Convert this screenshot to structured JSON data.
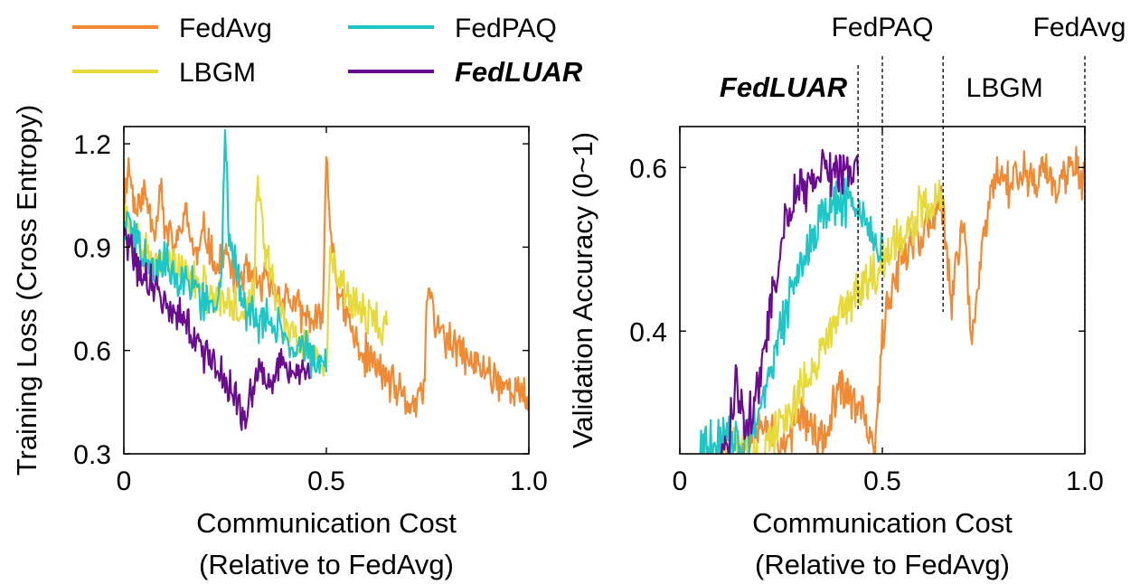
{
  "legend": {
    "entries": [
      {
        "name": "FedAvg",
        "color": "#F08A35",
        "emphasis": false
      },
      {
        "name": "FedPAQ",
        "color": "#1EC6C6",
        "emphasis": false
      },
      {
        "name": "LBGM",
        "color": "#E6DA3C",
        "emphasis": false
      },
      {
        "name": "FedLUAR",
        "color": "#6A0C8F",
        "emphasis": true
      }
    ]
  },
  "chart_data": [
    {
      "type": "line",
      "ylabel": "Training Loss (Cross Entropy)",
      "xlabel_lines": [
        "Communication Cost",
        "(Relative to FedAvg)"
      ],
      "xlim": [
        0,
        1.0
      ],
      "ylim": [
        0.3,
        1.25
      ],
      "xticks": [
        0,
        0.5,
        1.0
      ],
      "xtick_labels": [
        "0",
        "0.5",
        "1.0"
      ],
      "yticks": [
        0.3,
        0.6,
        0.9,
        1.2
      ],
      "ytick_labels": [
        "0.3",
        "0.6",
        "0.9",
        "1.2"
      ],
      "series": [
        {
          "name": "FedAvg",
          "x_end": 1.0,
          "points": [
            [
              0,
              1.0
            ],
            [
              0.01,
              1.15
            ],
            [
              0.03,
              1.0
            ],
            [
              0.05,
              1.06
            ],
            [
              0.08,
              0.95
            ],
            [
              0.09,
              1.12
            ],
            [
              0.1,
              0.95
            ],
            [
              0.13,
              0.9
            ],
            [
              0.15,
              1.0
            ],
            [
              0.18,
              0.86
            ],
            [
              0.2,
              0.95
            ],
            [
              0.23,
              0.83
            ],
            [
              0.25,
              0.88
            ],
            [
              0.28,
              0.8
            ],
            [
              0.3,
              0.83
            ],
            [
              0.33,
              0.79
            ],
            [
              0.35,
              0.8
            ],
            [
              0.38,
              0.76
            ],
            [
              0.41,
              0.75
            ],
            [
              0.44,
              0.7
            ],
            [
              0.47,
              0.68
            ],
            [
              0.49,
              0.67
            ],
            [
              0.5,
              1.17
            ],
            [
              0.51,
              0.95
            ],
            [
              0.52,
              0.88
            ],
            [
              0.53,
              0.75
            ],
            [
              0.55,
              0.7
            ],
            [
              0.58,
              0.6
            ],
            [
              0.62,
              0.56
            ],
            [
              0.65,
              0.52
            ],
            [
              0.68,
              0.47
            ],
            [
              0.7,
              0.45
            ],
            [
              0.72,
              0.44
            ],
            [
              0.74,
              0.48
            ],
            [
              0.75,
              0.78
            ],
            [
              0.77,
              0.68
            ],
            [
              0.8,
              0.62
            ],
            [
              0.83,
              0.6
            ],
            [
              0.86,
              0.56
            ],
            [
              0.9,
              0.54
            ],
            [
              0.94,
              0.5
            ],
            [
              0.97,
              0.48
            ],
            [
              1.0,
              0.45
            ]
          ]
        },
        {
          "name": "FedPAQ",
          "x_end": 0.5,
          "points": [
            [
              0,
              1.0
            ],
            [
              0.02,
              0.95
            ],
            [
              0.05,
              0.87
            ],
            [
              0.08,
              0.83
            ],
            [
              0.1,
              0.87
            ],
            [
              0.13,
              0.8
            ],
            [
              0.16,
              0.82
            ],
            [
              0.19,
              0.76
            ],
            [
              0.22,
              0.74
            ],
            [
              0.24,
              0.8
            ],
            [
              0.25,
              1.25
            ],
            [
              0.26,
              0.95
            ],
            [
              0.28,
              0.82
            ],
            [
              0.3,
              0.72
            ],
            [
              0.33,
              0.68
            ],
            [
              0.36,
              0.7
            ],
            [
              0.39,
              0.65
            ],
            [
              0.42,
              0.63
            ],
            [
              0.45,
              0.6
            ],
            [
              0.48,
              0.58
            ],
            [
              0.5,
              0.57
            ]
          ]
        },
        {
          "name": "LBGM",
          "x_end": 0.65,
          "points": [
            [
              0,
              1.0
            ],
            [
              0.02,
              0.93
            ],
            [
              0.05,
              0.9
            ],
            [
              0.08,
              0.85
            ],
            [
              0.11,
              0.88
            ],
            [
              0.14,
              0.82
            ],
            [
              0.17,
              0.8
            ],
            [
              0.2,
              0.78
            ],
            [
              0.23,
              0.75
            ],
            [
              0.26,
              0.74
            ],
            [
              0.29,
              0.72
            ],
            [
              0.32,
              0.75
            ],
            [
              0.33,
              1.12
            ],
            [
              0.34,
              0.95
            ],
            [
              0.36,
              0.82
            ],
            [
              0.38,
              0.72
            ],
            [
              0.41,
              0.66
            ],
            [
              0.44,
              0.62
            ],
            [
              0.47,
              0.58
            ],
            [
              0.5,
              0.56
            ],
            [
              0.51,
              0.86
            ],
            [
              0.53,
              0.8
            ],
            [
              0.55,
              0.76
            ],
            [
              0.58,
              0.72
            ],
            [
              0.61,
              0.7
            ],
            [
              0.63,
              0.68
            ],
            [
              0.65,
              0.66
            ]
          ]
        },
        {
          "name": "FedLUAR",
          "x_end": 0.46,
          "points": [
            [
              0,
              0.95
            ],
            [
              0.02,
              0.87
            ],
            [
              0.04,
              0.82
            ],
            [
              0.06,
              0.8
            ],
            [
              0.08,
              0.78
            ],
            [
              0.1,
              0.74
            ],
            [
              0.12,
              0.72
            ],
            [
              0.14,
              0.7
            ],
            [
              0.16,
              0.66
            ],
            [
              0.18,
              0.62
            ],
            [
              0.2,
              0.6
            ],
            [
              0.22,
              0.56
            ],
            [
              0.24,
              0.52
            ],
            [
              0.26,
              0.48
            ],
            [
              0.28,
              0.46
            ],
            [
              0.3,
              0.42
            ],
            [
              0.32,
              0.5
            ],
            [
              0.34,
              0.55
            ],
            [
              0.36,
              0.5
            ],
            [
              0.38,
              0.56
            ],
            [
              0.4,
              0.58
            ],
            [
              0.42,
              0.5
            ],
            [
              0.44,
              0.55
            ],
            [
              0.46,
              0.56
            ]
          ]
        }
      ]
    },
    {
      "type": "line",
      "ylabel": "Validation Accuracy (0~1)",
      "xlabel_lines": [
        "Communication Cost",
        "(Relative to FedAvg)"
      ],
      "xlim": [
        0,
        1.0
      ],
      "ylim": [
        0.25,
        0.65
      ],
      "xticks": [
        0,
        0.5,
        1.0
      ],
      "xtick_labels": [
        "0",
        "0.5",
        "1.0"
      ],
      "yticks": [
        0.4,
        0.6
      ],
      "ytick_labels": [
        "0.4",
        "0.6"
      ],
      "series": [
        {
          "name": "FedAvg",
          "x_end": 1.0,
          "points": [
            [
              0.15,
              0.25
            ],
            [
              0.2,
              0.3
            ],
            [
              0.25,
              0.26
            ],
            [
              0.3,
              0.3
            ],
            [
              0.35,
              0.26
            ],
            [
              0.4,
              0.33
            ],
            [
              0.45,
              0.3
            ],
            [
              0.48,
              0.25
            ],
            [
              0.49,
              0.3
            ],
            [
              0.5,
              0.4
            ],
            [
              0.52,
              0.45
            ],
            [
              0.55,
              0.5
            ],
            [
              0.6,
              0.52
            ],
            [
              0.65,
              0.55
            ],
            [
              0.67,
              0.43
            ],
            [
              0.7,
              0.55
            ],
            [
              0.72,
              0.38
            ],
            [
              0.75,
              0.52
            ],
            [
              0.78,
              0.6
            ],
            [
              0.82,
              0.58
            ],
            [
              0.85,
              0.6
            ],
            [
              0.88,
              0.58
            ],
            [
              0.9,
              0.6
            ],
            [
              0.93,
              0.57
            ],
            [
              0.96,
              0.61
            ],
            [
              1.0,
              0.58
            ]
          ]
        },
        {
          "name": "FedPAQ",
          "x_end": 0.5,
          "points": [
            [
              0.05,
              0.25
            ],
            [
              0.1,
              0.27
            ],
            [
              0.15,
              0.26
            ],
            [
              0.2,
              0.3
            ],
            [
              0.23,
              0.36
            ],
            [
              0.25,
              0.4
            ],
            [
              0.28,
              0.45
            ],
            [
              0.3,
              0.48
            ],
            [
              0.33,
              0.52
            ],
            [
              0.36,
              0.55
            ],
            [
              0.4,
              0.56
            ],
            [
              0.44,
              0.55
            ],
            [
              0.47,
              0.52
            ],
            [
              0.5,
              0.5
            ]
          ]
        },
        {
          "name": "LBGM",
          "x_end": 0.65,
          "points": [
            [
              0.1,
              0.25
            ],
            [
              0.15,
              0.26
            ],
            [
              0.2,
              0.25
            ],
            [
              0.25,
              0.28
            ],
            [
              0.3,
              0.33
            ],
            [
              0.35,
              0.38
            ],
            [
              0.4,
              0.42
            ],
            [
              0.45,
              0.45
            ],
            [
              0.5,
              0.48
            ],
            [
              0.55,
              0.52
            ],
            [
              0.6,
              0.55
            ],
            [
              0.63,
              0.56
            ],
            [
              0.65,
              0.55
            ]
          ]
        },
        {
          "name": "FedLUAR",
          "x_end": 0.44,
          "points": [
            [
              0.1,
              0.25
            ],
            [
              0.12,
              0.26
            ],
            [
              0.14,
              0.35
            ],
            [
              0.16,
              0.28
            ],
            [
              0.18,
              0.3
            ],
            [
              0.2,
              0.35
            ],
            [
              0.22,
              0.42
            ],
            [
              0.24,
              0.47
            ],
            [
              0.26,
              0.53
            ],
            [
              0.28,
              0.56
            ],
            [
              0.3,
              0.57
            ],
            [
              0.32,
              0.58
            ],
            [
              0.34,
              0.59
            ],
            [
              0.36,
              0.6
            ],
            [
              0.38,
              0.59
            ],
            [
              0.4,
              0.6
            ],
            [
              0.42,
              0.58
            ],
            [
              0.44,
              0.59
            ]
          ]
        }
      ],
      "cost_markers": [
        {
          "label": "FedLUAR",
          "x": 0.44,
          "emphasis": true
        },
        {
          "label": "FedPAQ",
          "x": 0.5,
          "emphasis": false
        },
        {
          "label": "LBGM",
          "x": 0.65,
          "emphasis": false
        },
        {
          "label": "FedAvg",
          "x": 1.0,
          "emphasis": false
        }
      ]
    }
  ]
}
